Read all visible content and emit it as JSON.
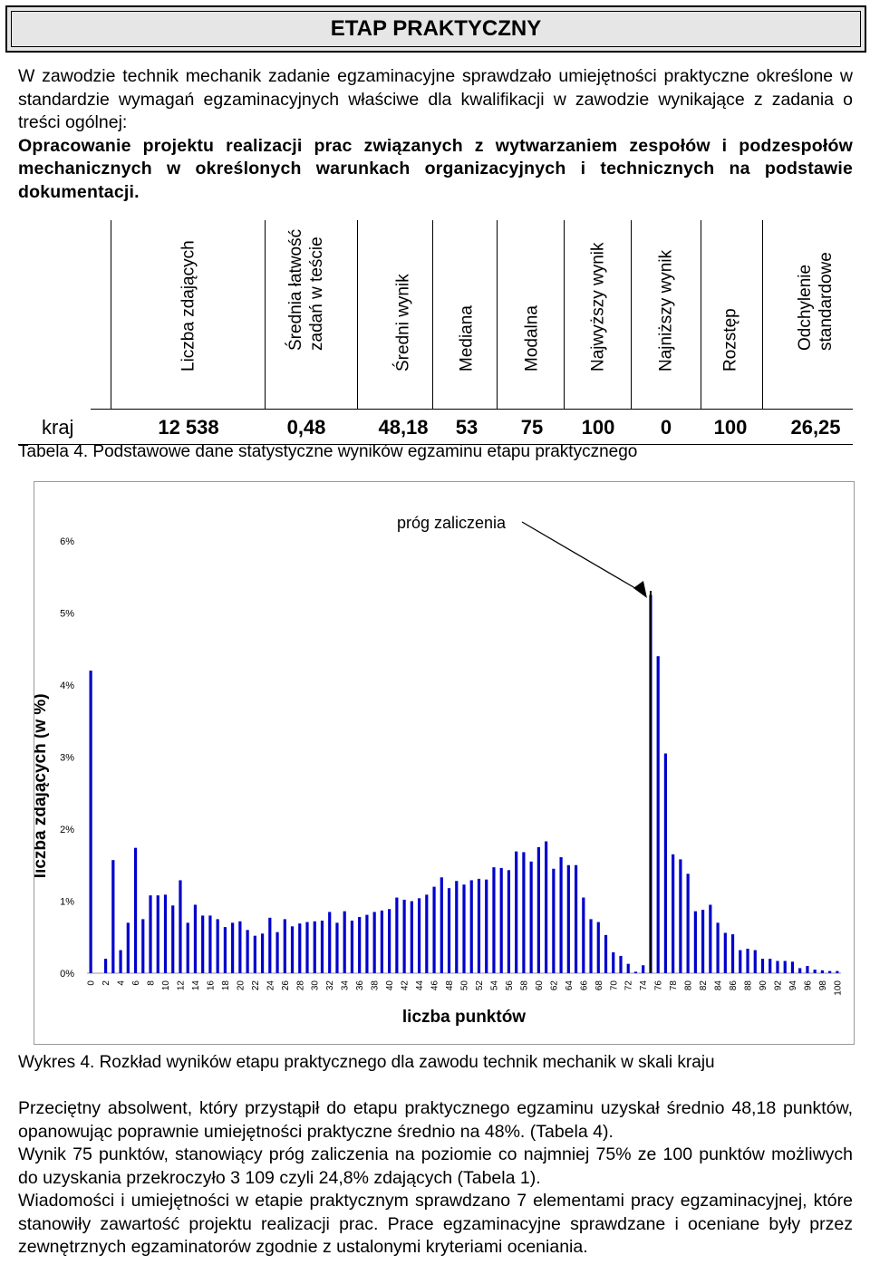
{
  "title": "ETAP PRAKTYCZNY",
  "intro": {
    "p1": "W zawodzie technik mechanik zadanie egzaminacyjne sprawdzało umiejętności praktyczne określone w standardzie wymagań egzaminacyjnych właściwe dla kwalifikacji w zawodzie wynikające z zadania o treści ogólnej:",
    "p2": "Opracowanie projektu realizacji prac związanych z wytwarzaniem zespołów i podzespołów mechanicznych w określonych warunkach organizacyjnych i technicznych na podstawie dokumentacji."
  },
  "stats_table": {
    "headers": [
      "Liczba zdających",
      "Średnia łatwość\nzadań w teście",
      "Średni wynik",
      "Mediana",
      "Modalna",
      "Najwyższy wynik",
      "Najniższy wynik",
      "Rozstęp",
      "Odchylenie\nstandardowe"
    ],
    "row_label": "kraj",
    "values": [
      "12 538",
      "0,48",
      "48,18",
      "53",
      "75",
      "100",
      "0",
      "100",
      "26,25"
    ]
  },
  "table_caption": "Tabela 4. Podstawowe dane statystyczne wyników egzaminu etapu praktycznego",
  "chart_data": {
    "type": "bar",
    "xlabel": "liczba punktów",
    "ylabel": "liczba zdających (w %)",
    "ylim": [
      0,
      6.5
    ],
    "yticks": [
      "0%",
      "1%",
      "2%",
      "3%",
      "4%",
      "5%",
      "6%"
    ],
    "annotation": "próg zaliczenia",
    "annotation_x": 75,
    "grid": false,
    "x": [
      0,
      1,
      2,
      3,
      4,
      5,
      6,
      7,
      8,
      9,
      10,
      11,
      12,
      13,
      14,
      15,
      16,
      17,
      18,
      19,
      20,
      21,
      22,
      23,
      24,
      25,
      26,
      27,
      28,
      29,
      30,
      31,
      32,
      33,
      34,
      35,
      36,
      37,
      38,
      39,
      40,
      41,
      42,
      43,
      44,
      45,
      46,
      47,
      48,
      49,
      50,
      51,
      52,
      53,
      54,
      55,
      56,
      57,
      58,
      59,
      60,
      61,
      62,
      63,
      64,
      65,
      66,
      67,
      68,
      69,
      70,
      71,
      72,
      73,
      74,
      75,
      76,
      77,
      78,
      79,
      80,
      81,
      82,
      83,
      84,
      85,
      86,
      87,
      88,
      89,
      90,
      91,
      92,
      93,
      94,
      95,
      96,
      97,
      98,
      99,
      100
    ],
    "values": [
      4.2,
      0,
      0.2,
      1.57,
      0.32,
      0.7,
      1.74,
      0.75,
      1.08,
      1.08,
      1.09,
      0.94,
      1.29,
      0.7,
      0.95,
      0.8,
      0.8,
      0.75,
      0.64,
      0.7,
      0.72,
      0.6,
      0.52,
      0.55,
      0.77,
      0.57,
      0.75,
      0.65,
      0.69,
      0.71,
      0.72,
      0.73,
      0.85,
      0.7,
      0.86,
      0.73,
      0.78,
      0.81,
      0.85,
      0.87,
      0.89,
      1.05,
      1.02,
      1.0,
      1.04,
      1.09,
      1.2,
      1.33,
      1.18,
      1.28,
      1.23,
      1.29,
      1.31,
      1.3,
      1.47,
      1.46,
      1.43,
      1.69,
      1.68,
      1.55,
      1.75,
      1.83,
      1.45,
      1.61,
      1.5,
      1.5,
      1.05,
      0.75,
      0.71,
      0.53,
      0.29,
      0.24,
      0.13,
      0.02,
      0.11,
      5.25,
      4.4,
      3.05,
      1.65,
      1.58,
      1.38,
      0.86,
      0.88,
      0.95,
      0.7,
      0.56,
      0.54,
      0.32,
      0.34,
      0.32,
      0.2,
      0.2,
      0.17,
      0.17,
      0.16,
      0.07,
      0.1,
      0.05,
      0.04,
      0.03,
      0.03
    ],
    "xticks": [
      "0",
      "2",
      "4",
      "6",
      "8",
      "10",
      "12",
      "14",
      "16",
      "18",
      "20",
      "22",
      "24",
      "26",
      "28",
      "30",
      "32",
      "34",
      "36",
      "38",
      "40",
      "42",
      "44",
      "46",
      "48",
      "50",
      "52",
      "54",
      "56",
      "58",
      "60",
      "62",
      "64",
      "66",
      "68",
      "70",
      "72",
      "74",
      "76",
      "78",
      "80",
      "82",
      "84",
      "86",
      "88",
      "90",
      "92",
      "94",
      "96",
      "98",
      "100"
    ],
    "bar_color": "#0000cc"
  },
  "chart_caption": "Wykres 4. Rozkład wyników etapu praktycznego dla zawodu technik mechanik w skali kraju",
  "body": {
    "p1": "Przeciętny absolwent, który przystąpił do etapu praktycznego egzaminu uzyskał średnio 48,18 punktów, opanowując poprawnie umiejętności praktyczne średnio na 48%. (Tabela 4).",
    "p2": "Wynik 75 punktów, stanowiący próg zaliczenia na poziomie co najmniej 75% ze 100 punktów możliwych do uzyskania przekroczyło 3 109 czyli 24,8% zdających (Tabela 1).",
    "p3": "Wiadomości i umiejętności w etapie praktycznym sprawdzano 7 elementami pracy egzaminacyjnej, które stanowiły zawartość projektu realizacji prac. Prace egzaminacyjne sprawdzane i oceniane były przez zewnętrznych egzaminatorów zgodnie z ustalonymi kryteriami oceniania."
  }
}
